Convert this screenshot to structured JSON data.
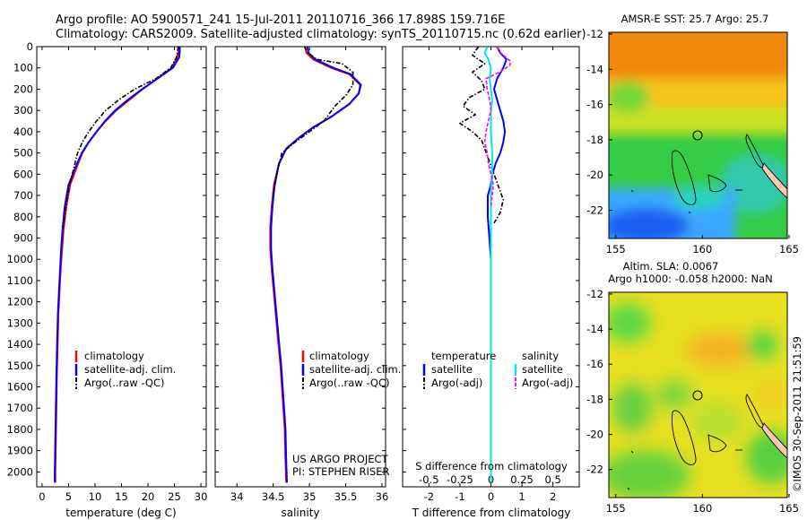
{
  "header": {
    "title_line1": "Argo profile: AO 5900571_241 15-Jul-2011 20110716_366 17.898S 159.716E",
    "title_line2": "Climatology: CARS2009. Satellite-adjusted climatology: synTS_20110715.nc (0.62d earlier)"
  },
  "footer": {
    "project_line1": "US ARGO PROJECT",
    "project_line2": "PI: STEPHEN RISER",
    "timestamp": "©IMOS 30-Sep-2011 21:51:59"
  },
  "colors": {
    "climatology": "#ff0000",
    "satellite_adj": "#0000ff",
    "argo": "#000000",
    "sal_satellite": "#00e5ee",
    "sal_argo": "#ff00ff"
  },
  "chart_data": [
    {
      "type": "line",
      "xlabel": "temperature (deg C)",
      "ylabel": "",
      "xlim": [
        -1,
        31
      ],
      "ylim": [
        2070,
        0
      ],
      "xticks": [
        "0",
        "5",
        "10",
        "15",
        "20",
        "25",
        "30"
      ],
      "xtick_values": [
        0,
        5,
        10,
        15,
        20,
        25,
        30
      ],
      "yticks": [
        "0",
        "100",
        "200",
        "300",
        "400",
        "500",
        "600",
        "700",
        "800",
        "900",
        "1000",
        "1100",
        "1200",
        "1300",
        "1400",
        "1500",
        "1600",
        "1700",
        "1800",
        "1900",
        "2000"
      ],
      "ytick_values": [
        0,
        100,
        200,
        300,
        400,
        500,
        600,
        700,
        800,
        900,
        1000,
        1100,
        1200,
        1300,
        1400,
        1500,
        1600,
        1700,
        1800,
        1900,
        2000
      ],
      "legend": [
        "climatology",
        "satellite-adj. clim.",
        "Argo(..raw -QC)"
      ],
      "series": [
        {
          "name": "climatology",
          "style": "solid",
          "color": "#ff0000",
          "x": [
            25.8,
            25.8,
            25.5,
            24.5,
            21.8,
            19.0,
            16.5,
            14.0,
            12.0,
            10.3,
            8.8,
            7.6,
            6.8,
            5.3,
            4.6,
            4.1,
            3.8,
            3.5,
            3.3,
            3.1,
            3.0,
            2.9,
            2.8,
            2.7,
            2.6,
            2.5,
            2.5
          ],
          "y": [
            0,
            20,
            50,
            100,
            150,
            200,
            250,
            300,
            350,
            400,
            450,
            500,
            550,
            650,
            750,
            850,
            950,
            1050,
            1150,
            1250,
            1350,
            1450,
            1550,
            1700,
            1850,
            2000,
            2050
          ]
        },
        {
          "name": "satellite-adj. clim.",
          "style": "solid",
          "color": "#0000ff",
          "x": [
            26.0,
            26.0,
            25.9,
            24.7,
            21.8,
            18.9,
            16.2,
            13.8,
            11.9,
            10.3,
            8.8,
            7.5,
            6.6,
            5.0,
            4.3,
            3.9,
            3.6,
            3.4,
            3.2,
            3.0,
            2.9,
            2.8,
            2.7,
            2.6,
            2.5,
            2.4,
            2.4
          ],
          "y": [
            0,
            20,
            50,
            100,
            150,
            200,
            250,
            300,
            350,
            400,
            450,
            500,
            550,
            650,
            750,
            850,
            950,
            1050,
            1150,
            1250,
            1350,
            1450,
            1550,
            1700,
            1850,
            2000,
            2050
          ]
        },
        {
          "name": "Argo(..raw -QC)",
          "style": "dashdot",
          "color": "#000000",
          "x": [
            25.7,
            25.6,
            25.4,
            24.3,
            21.5,
            17.5,
            14.5,
            12.0,
            10.3,
            8.8,
            7.6,
            6.7,
            5.2,
            4.5,
            4.0
          ],
          "y": [
            0,
            20,
            50,
            100,
            150,
            200,
            250,
            300,
            350,
            400,
            450,
            500,
            650,
            750,
            850
          ]
        }
      ]
    },
    {
      "type": "line",
      "xlabel": "salinity",
      "ylabel": "",
      "xlim": [
        33.7,
        36.05
      ],
      "ylim": [
        2070,
        0
      ],
      "xticks": [
        "34",
        "34.5",
        "35",
        "35.5",
        "36"
      ],
      "xtick_values": [
        34,
        34.5,
        35,
        35.5,
        36
      ],
      "legend": [
        "climatology",
        "satellite-adj. clim.",
        "Argo(..raw -QC)"
      ],
      "series": [
        {
          "name": "climatology",
          "style": "solid",
          "color": "#ff0000",
          "x": [
            34.94,
            34.96,
            35.05,
            35.3,
            35.55,
            35.7,
            35.68,
            35.55,
            35.3,
            35.05,
            34.85,
            34.68,
            34.58,
            34.51,
            34.48,
            34.46,
            34.46,
            34.48,
            34.52,
            34.56,
            34.6,
            34.63,
            34.66,
            34.67,
            34.68
          ],
          "y": [
            0,
            30,
            60,
            100,
            130,
            180,
            220,
            270,
            330,
            380,
            430,
            480,
            550,
            650,
            750,
            850,
            950,
            1050,
            1200,
            1350,
            1500,
            1650,
            1800,
            1950,
            2050
          ]
        },
        {
          "name": "satellite-adj. clim.",
          "style": "solid",
          "color": "#0000ff",
          "x": [
            34.97,
            34.99,
            35.08,
            35.33,
            35.57,
            35.71,
            35.68,
            35.55,
            35.3,
            35.05,
            34.85,
            34.68,
            34.58,
            34.52,
            34.49,
            34.47,
            34.47,
            34.49,
            34.53,
            34.57,
            34.61,
            34.64,
            34.67,
            34.68,
            34.69
          ],
          "y": [
            0,
            30,
            60,
            100,
            130,
            180,
            220,
            270,
            330,
            380,
            430,
            480,
            550,
            650,
            750,
            850,
            950,
            1050,
            1200,
            1350,
            1500,
            1650,
            1800,
            1950,
            2050
          ]
        },
        {
          "name": "Argo(..raw -QC)",
          "style": "dashdot",
          "color": "#000000",
          "x": [
            34.93,
            34.98,
            35.1,
            35.45,
            35.6,
            35.6,
            35.5,
            35.35,
            35.2,
            35.0,
            34.8,
            34.62,
            34.55,
            34.5
          ],
          "y": [
            0,
            30,
            60,
            80,
            120,
            180,
            230,
            280,
            350,
            400,
            450,
            500,
            600,
            700
          ]
        }
      ]
    },
    {
      "type": "line",
      "xlabel": "T difference from climatology",
      "xlabel_top": "S difference from climatology",
      "ylabel": "",
      "xlim": [
        -2.85,
        2.85
      ],
      "ylim": [
        2070,
        0
      ],
      "xticks": [
        "-2",
        "-1",
        "0",
        "1",
        "2"
      ],
      "xtick_values": [
        -2,
        -1,
        0,
        1,
        2
      ],
      "sticks": [
        "-0.5",
        "-0.25",
        "0",
        "0.25",
        "0.5"
      ],
      "stick_values": [
        -0.5,
        -0.25,
        0,
        0.25,
        0.5
      ],
      "legend_title_t": "temperature",
      "legend_title_s": "salinity",
      "legend": [
        "satellite",
        "Argo(-adj)",
        "satellite",
        "Argo(-adj)"
      ],
      "series": [
        {
          "name": "T satellite",
          "style": "solid",
          "color": "#0000ff",
          "unit": "T",
          "x": [
            0.2,
            0.3,
            0.5,
            0.4,
            0.2,
            0.1,
            0.2,
            0.3,
            0.4,
            0.45,
            0.4,
            0.3,
            0.15,
            0.05,
            0.0,
            -0.1,
            -0.1,
            -0.05,
            0.0,
            0.0,
            0.0,
            0.0,
            0.0,
            0.0
          ],
          "y": [
            0,
            30,
            60,
            100,
            150,
            200,
            250,
            300,
            350,
            400,
            450,
            500,
            550,
            600,
            650,
            700,
            800,
            900,
            1000,
            1200,
            1400,
            1600,
            1800,
            2050
          ]
        },
        {
          "name": "T Argo(-adj)",
          "style": "dashdot",
          "color": "#000000",
          "unit": "T",
          "x": [
            -0.4,
            -0.6,
            -0.2,
            -0.6,
            -0.3,
            -0.2,
            -0.7,
            -0.9,
            -0.5,
            -1.0,
            -0.6,
            -0.3,
            -0.2,
            0.0,
            0.2,
            0.4,
            0.3,
            0.1
          ],
          "y": [
            0,
            40,
            80,
            120,
            160,
            200,
            240,
            280,
            320,
            360,
            400,
            440,
            480,
            560,
            640,
            720,
            780,
            830
          ]
        },
        {
          "name": "S satellite",
          "style": "solid",
          "color": "#00e5ee",
          "unit": "S",
          "x": [
            -0.03,
            -0.05,
            -0.02,
            0.0,
            -0.01,
            0.0,
            0.01,
            0.0,
            0.0,
            0.01,
            0.01,
            0.0,
            0.0,
            0.0,
            0.0,
            0.0,
            0.0,
            0.0
          ],
          "y": [
            0,
            30,
            60,
            100,
            150,
            200,
            250,
            300,
            400,
            500,
            600,
            700,
            800,
            900,
            1000,
            1200,
            1600,
            2050
          ]
        },
        {
          "name": "S Argo(-adj)",
          "style": "dashed",
          "color": "#ff00ff",
          "unit": "S",
          "x": [
            0.05,
            0.08,
            0.12,
            0.16,
            0.15,
            0.07,
            -0.04,
            -0.03,
            -0.01,
            0.0,
            -0.02,
            -0.04,
            -0.05,
            -0.03,
            -0.02,
            0.0,
            0.02,
            0.01,
            0.0
          ],
          "y": [
            0,
            30,
            50,
            70,
            90,
            120,
            150,
            200,
            250,
            300,
            350,
            400,
            450,
            500,
            550,
            600,
            650,
            700,
            750
          ]
        }
      ]
    }
  ],
  "maps": {
    "sst": {
      "title": "AMSR-E SST: 25.7 Argo: 25.7",
      "lon_ticks": [
        "155",
        "160",
        "165"
      ],
      "lat_ticks": [
        "-12",
        "-14",
        "-16",
        "-18",
        "-20",
        "-22"
      ],
      "lon_range": [
        154.6,
        164.9
      ],
      "lat_range": [
        -23.6,
        -11.9
      ],
      "argo_position": {
        "lon": 159.716,
        "lat": -17.898
      }
    },
    "sla": {
      "title_line1": "Altim. SLA: 0.0067",
      "title_line2": "Argo h1000: -0.058 h2000: NaN",
      "lon_ticks": [
        "155",
        "160",
        "165"
      ],
      "lat_ticks": [
        "-12",
        "-14",
        "-16",
        "-18",
        "-20",
        "-22"
      ],
      "lon_range": [
        154.6,
        164.9
      ],
      "lat_range": [
        -23.6,
        -11.9
      ],
      "argo_position": {
        "lon": 159.716,
        "lat": -17.898
      }
    }
  }
}
